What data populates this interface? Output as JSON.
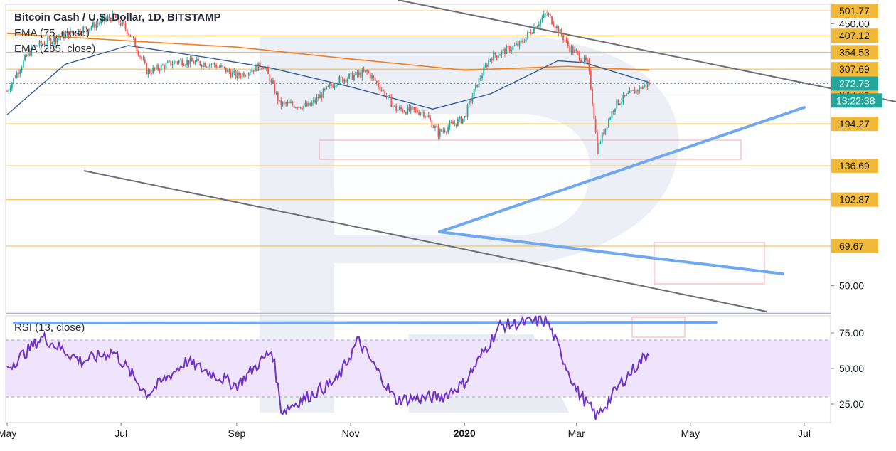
{
  "chart_data": {
    "type": "candlestick",
    "title": "Bitcoin Cash / U.S. Dollar, 1D, BITSTAMP",
    "indicators": [
      "EMA (75, close)",
      "EMA (285, close)"
    ],
    "x_tick_labels": [
      "May",
      "Jul",
      "Sep",
      "Nov",
      "2020",
      "Mar",
      "May",
      "Jul"
    ],
    "price_axis": {
      "ylim": [
        40,
        530
      ],
      "tick_labels": [
        "450.00",
        "50.00"
      ],
      "level_labels": [
        "501.77",
        "407.12",
        "354.53",
        "307.69",
        "247.61",
        "194.27",
        "136.69",
        "102.87",
        "69.67"
      ],
      "last_price": "272.73",
      "countdown": "13:22:38"
    },
    "price_series_approx": [
      {
        "x": "2019-05-01",
        "price": 255
      },
      {
        "x": "2019-05-15",
        "price": 370
      },
      {
        "x": "2019-06-01",
        "price": 410
      },
      {
        "x": "2019-06-15",
        "price": 440
      },
      {
        "x": "2019-06-27",
        "price": 480
      },
      {
        "x": "2019-07-05",
        "price": 420
      },
      {
        "x": "2019-07-15",
        "price": 300
      },
      {
        "x": "2019-08-01",
        "price": 330
      },
      {
        "x": "2019-08-20",
        "price": 320
      },
      {
        "x": "2019-09-01",
        "price": 290
      },
      {
        "x": "2019-09-15",
        "price": 320
      },
      {
        "x": "2019-09-24",
        "price": 230
      },
      {
        "x": "2019-10-10",
        "price": 225
      },
      {
        "x": "2019-10-25",
        "price": 280
      },
      {
        "x": "2019-11-10",
        "price": 300
      },
      {
        "x": "2019-11-25",
        "price": 220
      },
      {
        "x": "2019-12-10",
        "price": 215
      },
      {
        "x": "2019-12-18",
        "price": 180
      },
      {
        "x": "2020-01-01",
        "price": 205
      },
      {
        "x": "2020-01-15",
        "price": 340
      },
      {
        "x": "2020-01-31",
        "price": 380
      },
      {
        "x": "2020-02-14",
        "price": 490
      },
      {
        "x": "2020-02-26",
        "price": 370
      },
      {
        "x": "2020-03-07",
        "price": 320
      },
      {
        "x": "2020-03-12",
        "price": 155
      },
      {
        "x": "2020-03-22",
        "price": 230
      },
      {
        "x": "2020-04-05",
        "price": 265
      },
      {
        "x": "2020-04-09",
        "price": 272
      }
    ],
    "ema75_approx": [
      {
        "x": "2019-05-01",
        "price": 210
      },
      {
        "x": "2019-06-01",
        "price": 320
      },
      {
        "x": "2019-07-05",
        "price": 375
      },
      {
        "x": "2019-08-15",
        "price": 340
      },
      {
        "x": "2019-09-20",
        "price": 310
      },
      {
        "x": "2019-11-01",
        "price": 265
      },
      {
        "x": "2019-12-15",
        "price": 220
      },
      {
        "x": "2020-01-15",
        "price": 250
      },
      {
        "x": "2020-02-20",
        "price": 330
      },
      {
        "x": "2020-03-05",
        "price": 325
      },
      {
        "x": "2020-04-09",
        "price": 275
      }
    ],
    "ema285_approx": [
      {
        "x": "2019-05-01",
        "price": 415
      },
      {
        "x": "2019-07-05",
        "price": 390
      },
      {
        "x": "2019-09-01",
        "price": 370
      },
      {
        "x": "2019-11-01",
        "price": 335
      },
      {
        "x": "2020-01-01",
        "price": 305
      },
      {
        "x": "2020-02-25",
        "price": 315
      },
      {
        "x": "2020-04-09",
        "price": 305
      }
    ],
    "rsi": {
      "label": "RSI (13, close)",
      "tick_labels": [
        "75.00",
        "50.00",
        "25.00"
      ],
      "ylim": [
        12,
        87
      ],
      "band": [
        30,
        70
      ],
      "series_approx": [
        {
          "x": "2019-05-01",
          "price": 50
        },
        {
          "x": "2019-05-20",
          "price": 72
        },
        {
          "x": "2019-06-10",
          "price": 55
        },
        {
          "x": "2019-06-27",
          "price": 62
        },
        {
          "x": "2019-07-15",
          "price": 32
        },
        {
          "x": "2019-08-05",
          "price": 55
        },
        {
          "x": "2019-09-01",
          "price": 38
        },
        {
          "x": "2019-09-20",
          "price": 63
        },
        {
          "x": "2019-09-25",
          "price": 20
        },
        {
          "x": "2019-10-25",
          "price": 42
        },
        {
          "x": "2019-11-05",
          "price": 70
        },
        {
          "x": "2019-11-25",
          "price": 28
        },
        {
          "x": "2019-12-20",
          "price": 30
        },
        {
          "x": "2020-01-01",
          "price": 40
        },
        {
          "x": "2020-01-20",
          "price": 80
        },
        {
          "x": "2020-02-14",
          "price": 84
        },
        {
          "x": "2020-03-01",
          "price": 35
        },
        {
          "x": "2020-03-12",
          "price": 16
        },
        {
          "x": "2020-03-25",
          "price": 40
        },
        {
          "x": "2020-04-09",
          "price": 62
        }
      ]
    }
  }
}
